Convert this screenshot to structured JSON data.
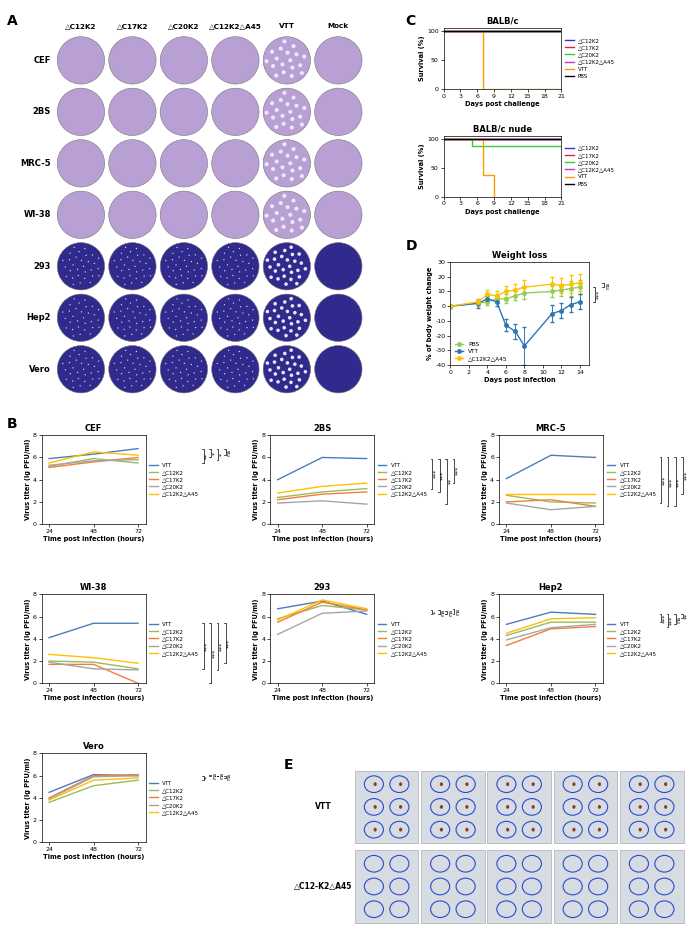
{
  "panel_labels": [
    "A",
    "B",
    "C",
    "D",
    "E"
  ],
  "plaque_assay": {
    "columns": [
      "△C12K2",
      "△C17K2",
      "△C20K2",
      "△C12K2△A45",
      "VTT",
      "Mock"
    ],
    "rows": [
      "CEF",
      "2BS",
      "MRC-5",
      "WI-38",
      "293",
      "Hep2",
      "Vero"
    ]
  },
  "chart_data": [
    {
      "type": "line",
      "title": "CEF",
      "xlabel": "Time post infection (hours)",
      "ylabel": "Virus titer (lg PFU/ml)",
      "x": [
        24,
        48,
        72
      ],
      "xlim": [
        20,
        76
      ],
      "xticks": [
        24,
        48,
        72
      ],
      "ylim": [
        0,
        8
      ],
      "yticks": [
        0,
        2,
        4,
        6,
        8
      ],
      "legend": "right",
      "series": [
        {
          "name": "VTT",
          "color": "#4a7ebb",
          "values": [
            5.9,
            6.3,
            6.8
          ]
        },
        {
          "name": "△C12K2",
          "color": "#9bbb59",
          "values": [
            5.2,
            5.9,
            5.5
          ]
        },
        {
          "name": "△C17K2",
          "color": "#f07f3c",
          "values": [
            5.1,
            5.6,
            6.0
          ]
        },
        {
          "name": "△C20K2",
          "color": "#a5a5a5",
          "values": [
            5.3,
            5.7,
            5.8
          ]
        },
        {
          "name": "△C12K2△A45",
          "color": "#ffc000",
          "values": [
            5.5,
            6.5,
            6.2
          ]
        }
      ],
      "comparisons": [
        {
          "series": "VTT",
          "versus": "△C12K2",
          "label": "**"
        },
        {
          "series": "VTT",
          "versus": "△C17K2",
          "label": "*"
        },
        {
          "series": "VTT",
          "versus": "△C20K2",
          "label": "*"
        },
        {
          "series": "VTT",
          "versus": "△C12K2△A45",
          "label": "ns"
        }
      ]
    },
    {
      "type": "line",
      "title": "2BS",
      "xlabel": "Time post infection (hours)",
      "ylabel": "Virus titer (lg PFU/ml)",
      "x": [
        24,
        48,
        72
      ],
      "xlim": [
        20,
        76
      ],
      "xticks": [
        24,
        48,
        72
      ],
      "ylim": [
        0,
        8
      ],
      "yticks": [
        0,
        2,
        4,
        6,
        8
      ],
      "legend": "right",
      "series": [
        {
          "name": "VTT",
          "color": "#4a7ebb",
          "values": [
            4.0,
            6.0,
            5.9
          ]
        },
        {
          "name": "△C12K2",
          "color": "#9bbb59",
          "values": [
            2.4,
            2.9,
            3.2
          ]
        },
        {
          "name": "△C17K2",
          "color": "#f07f3c",
          "values": [
            2.2,
            2.7,
            2.9
          ]
        },
        {
          "name": "△C20K2",
          "color": "#a5a5a5",
          "values": [
            1.9,
            2.1,
            1.8
          ]
        },
        {
          "name": "△C12K2△A45",
          "color": "#ffc000",
          "values": [
            2.8,
            3.4,
            3.7
          ]
        }
      ],
      "comparisons": [
        {
          "series": "VTT",
          "versus": "△C12K2",
          "label": "***"
        },
        {
          "series": "VTT",
          "versus": "△C17K2",
          "label": "***"
        },
        {
          "series": "VTT",
          "versus": "△C20K2",
          "label": "**"
        },
        {
          "series": "VTT",
          "versus": "△C12K2△A45",
          "label": "***"
        }
      ]
    },
    {
      "type": "line",
      "title": "MRC-5",
      "xlabel": "Time post infection (hours)",
      "ylabel": "Virus titer (lg PFU/ml)",
      "x": [
        24,
        48,
        72
      ],
      "xlim": [
        20,
        76
      ],
      "xticks": [
        24,
        48,
        72
      ],
      "ylim": [
        0,
        8
      ],
      "yticks": [
        0,
        2,
        4,
        6,
        8
      ],
      "legend": "right",
      "series": [
        {
          "name": "VTT",
          "color": "#4a7ebb",
          "values": [
            4.1,
            6.2,
            6.0
          ]
        },
        {
          "name": "△C12K2",
          "color": "#9bbb59",
          "values": [
            2.6,
            2.0,
            1.9
          ]
        },
        {
          "name": "△C17K2",
          "color": "#f07f3c",
          "values": [
            2.0,
            2.2,
            1.6
          ]
        },
        {
          "name": "△C20K2",
          "color": "#a5a5a5",
          "values": [
            1.9,
            1.3,
            1.6
          ]
        },
        {
          "name": "△C12K2△A45",
          "color": "#ffc000",
          "values": [
            2.7,
            2.7,
            2.7
          ]
        }
      ],
      "comparisons": [
        {
          "series": "VTT",
          "versus": "△C12K2",
          "label": "***"
        },
        {
          "series": "VTT",
          "versus": "△C17K2",
          "label": "***"
        },
        {
          "series": "VTT",
          "versus": "△C20K2",
          "label": "***"
        },
        {
          "series": "VTT",
          "versus": "△C12K2△A45",
          "label": "***"
        }
      ]
    },
    {
      "type": "line",
      "title": "WI-38",
      "xlabel": "Time post infection (hours)",
      "ylabel": "Virus titer (lg PFU/ml)",
      "x": [
        24,
        48,
        72
      ],
      "xlim": [
        20,
        76
      ],
      "xticks": [
        24,
        48,
        72
      ],
      "ylim": [
        0,
        8
      ],
      "yticks": [
        0,
        2,
        4,
        6,
        8
      ],
      "legend": "right",
      "series": [
        {
          "name": "VTT",
          "color": "#4a7ebb",
          "values": [
            4.1,
            5.4,
            5.4
          ]
        },
        {
          "name": "△C12K2",
          "color": "#9bbb59",
          "values": [
            2.0,
            1.9,
            1.3
          ]
        },
        {
          "name": "△C17K2",
          "color": "#f07f3c",
          "values": [
            1.7,
            1.7,
            0
          ]
        },
        {
          "name": "△C20K2",
          "color": "#a5a5a5",
          "values": [
            1.9,
            1.3,
            1.2
          ]
        },
        {
          "name": "△C12K2△A45",
          "color": "#ffc000",
          "values": [
            2.6,
            2.3,
            1.8
          ]
        }
      ],
      "comparisons": [
        {
          "series": "VTT",
          "versus": "△C12K2",
          "label": "***"
        },
        {
          "series": "VTT",
          "versus": "△C17K2",
          "label": "***"
        },
        {
          "series": "VTT",
          "versus": "△C20K2",
          "label": "***"
        },
        {
          "series": "VTT",
          "versus": "△C12K2△A45",
          "label": "***"
        }
      ]
    },
    {
      "type": "line",
      "title": "293",
      "xlabel": "Time post infection (hours)",
      "ylabel": "Virus titer (lg PFU/ml)",
      "x": [
        24,
        48,
        72
      ],
      "xlim": [
        20,
        76
      ],
      "xticks": [
        24,
        48,
        72
      ],
      "ylim": [
        0,
        8
      ],
      "yticks": [
        0,
        2,
        4,
        6,
        8
      ],
      "legend": "right",
      "series": [
        {
          "name": "VTT",
          "color": "#4a7ebb",
          "values": [
            6.7,
            7.4,
            6.2
          ]
        },
        {
          "name": "△C12K2",
          "color": "#9bbb59",
          "values": [
            5.8,
            7.0,
            6.6
          ]
        },
        {
          "name": "△C17K2",
          "color": "#f07f3c",
          "values": [
            5.5,
            7.3,
            6.6
          ]
        },
        {
          "name": "△C20K2",
          "color": "#a5a5a5",
          "values": [
            4.4,
            6.3,
            6.5
          ]
        },
        {
          "name": "△C12K2△A45",
          "color": "#ffc000",
          "values": [
            5.7,
            7.5,
            6.7
          ]
        }
      ],
      "comparisons": [
        {
          "series": "VTT",
          "versus": "△C12K2",
          "label": "*"
        },
        {
          "series": "VTT",
          "versus": "△C17K2",
          "label": "ns"
        },
        {
          "series": "VTT",
          "versus": "△C20K2",
          "label": "ns"
        },
        {
          "series": "VTT",
          "versus": "△C12K2△A45",
          "label": "ns"
        }
      ]
    },
    {
      "type": "line",
      "title": "Hep2",
      "xlabel": "Time post infection (hours)",
      "ylabel": "Virus titer (lg PFU/ml)",
      "x": [
        24,
        48,
        72
      ],
      "xlim": [
        20,
        76
      ],
      "xticks": [
        24,
        48,
        72
      ],
      "ylim": [
        0,
        8
      ],
      "yticks": [
        0,
        2,
        4,
        6,
        8
      ],
      "legend": "right",
      "series": [
        {
          "name": "VTT",
          "color": "#4a7ebb",
          "values": [
            5.3,
            6.4,
            6.2
          ]
        },
        {
          "name": "△C12K2",
          "color": "#9bbb59",
          "values": [
            4.3,
            5.5,
            5.5
          ]
        },
        {
          "name": "△C17K2",
          "color": "#f07f3c",
          "values": [
            3.4,
            4.9,
            5.1
          ]
        },
        {
          "name": "△C20K2",
          "color": "#a5a5a5",
          "values": [
            3.9,
            5.0,
            5.3
          ]
        },
        {
          "name": "△C12K2△A45",
          "color": "#ffc000",
          "values": [
            4.5,
            5.8,
            5.9
          ]
        }
      ],
      "comparisons": [
        {
          "series": "VTT",
          "versus": "△C12K2",
          "label": "***"
        },
        {
          "series": "VTT",
          "versus": "△C17K2",
          "label": "***"
        },
        {
          "series": "VTT",
          "versus": "△C20K2",
          "label": "ns"
        },
        {
          "series": "VTT",
          "versus": "△C12K2△A45",
          "label": "**"
        }
      ]
    },
    {
      "type": "line",
      "title": "Vero",
      "xlabel": "Time post infection (hours)",
      "ylabel": "Virus titer (lg PFU/ml)",
      "x": [
        24,
        48,
        72
      ],
      "xlim": [
        20,
        76
      ],
      "xticks": [
        24,
        48,
        72
      ],
      "ylim": [
        0,
        8
      ],
      "yticks": [
        0,
        2,
        4,
        6,
        8
      ],
      "legend": "right",
      "series": [
        {
          "name": "VTT",
          "color": "#4a7ebb",
          "values": [
            4.5,
            6.1,
            6.0
          ]
        },
        {
          "name": "△C12K2",
          "color": "#9bbb59",
          "values": [
            3.6,
            5.1,
            5.6
          ]
        },
        {
          "name": "△C17K2",
          "color": "#f07f3c",
          "values": [
            4.0,
            6.0,
            6.1
          ]
        },
        {
          "name": "△C20K2",
          "color": "#a5a5a5",
          "values": [
            3.9,
            5.9,
            6.0
          ]
        },
        {
          "name": "△C12K2△A45",
          "color": "#ffc000",
          "values": [
            3.8,
            5.6,
            5.8
          ]
        }
      ],
      "comparisons": [
        {
          "series": "VTT",
          "versus": "△C12K2",
          "label": "*"
        },
        {
          "series": "VTT",
          "versus": "△C17K2",
          "label": "ns"
        },
        {
          "series": "VTT",
          "versus": "△C20K2",
          "label": "ns"
        },
        {
          "series": "VTT",
          "versus": "△C12K2△A45",
          "label": "ns"
        }
      ]
    },
    {
      "type": "line",
      "title": "BALB/c",
      "xlabel": "Days post challenge",
      "ylabel": "Survival (%)",
      "xlim": [
        0,
        21
      ],
      "xticks": [
        0,
        3,
        6,
        9,
        12,
        15,
        18,
        21
      ],
      "ylim": [
        0,
        105
      ],
      "yticks": [
        0,
        50,
        100
      ],
      "legend": "right",
      "series": [
        {
          "name": "△C12K2",
          "color": "#3333cc",
          "line_style": "steps",
          "x": [
            0,
            21
          ],
          "values": [
            100,
            100
          ]
        },
        {
          "name": "△C17K2",
          "color": "#e0204a",
          "line_style": "steps",
          "x": [
            0,
            21
          ],
          "values": [
            100,
            100
          ]
        },
        {
          "name": "△C20K2",
          "color": "#33cc33",
          "line_style": "steps",
          "x": [
            0,
            21
          ],
          "values": [
            100,
            100
          ]
        },
        {
          "name": "△C12K2△A45",
          "color": "#cc33cc",
          "line_style": "steps",
          "x": [
            0,
            21
          ],
          "values": [
            100,
            100
          ]
        },
        {
          "name": "VTT",
          "color": "#ff9900",
          "line_style": "steps",
          "x": [
            0,
            7,
            21
          ],
          "values": [
            100,
            0,
            0
          ]
        },
        {
          "name": "PBS",
          "color": "#000000",
          "line_style": "steps",
          "x": [
            0,
            21
          ],
          "values": [
            100,
            100
          ]
        }
      ]
    },
    {
      "type": "line",
      "title": "BALB/c nude",
      "xlabel": "Days post challenge",
      "ylabel": "Survival (%)",
      "xlim": [
        0,
        21
      ],
      "xticks": [
        0,
        3,
        6,
        9,
        12,
        15,
        18,
        21
      ],
      "ylim": [
        0,
        105
      ],
      "yticks": [
        0,
        50,
        100
      ],
      "legend": "right",
      "series": [
        {
          "name": "△C12K2",
          "color": "#3333cc",
          "line_style": "steps",
          "x": [
            0,
            21
          ],
          "values": [
            100,
            100
          ]
        },
        {
          "name": "△C17K2",
          "color": "#e0204a",
          "line_style": "steps",
          "x": [
            0,
            21
          ],
          "values": [
            100,
            100
          ]
        },
        {
          "name": "△C20K2",
          "color": "#33cc33",
          "line_style": "steps",
          "x": [
            0,
            5,
            21
          ],
          "values": [
            100,
            87.5,
            87.5
          ]
        },
        {
          "name": "△C12K2△A45",
          "color": "#cc33cc",
          "line_style": "steps",
          "x": [
            0,
            21
          ],
          "values": [
            100,
            100
          ]
        },
        {
          "name": "VTT",
          "color": "#ff9900",
          "line_style": "steps",
          "x": [
            0,
            7,
            9
          ],
          "values": [
            100,
            37.5,
            0
          ]
        },
        {
          "name": "PBS",
          "color": "#000000",
          "line_style": "steps",
          "x": [
            0,
            21
          ],
          "values": [
            100,
            100
          ]
        }
      ]
    },
    {
      "type": "line",
      "title": "Weight loss",
      "xlabel": "Days post infection",
      "ylabel": "% of body weight change",
      "x": [
        0,
        3,
        4,
        5,
        6,
        7,
        8,
        11,
        12,
        13,
        14
      ],
      "xlim": [
        0,
        15
      ],
      "xticks": [
        0,
        2,
        4,
        6,
        8,
        10,
        12,
        14
      ],
      "ylim": [
        -40,
        30
      ],
      "yticks": [
        -40,
        -30,
        -20,
        -10,
        0,
        10,
        20,
        30
      ],
      "legend": "lower left",
      "series": [
        {
          "name": "PBS",
          "color": "#92d050",
          "marker": "o",
          "values": [
            0,
            2,
            3,
            5,
            5,
            7,
            9,
            10,
            11,
            12,
            13
          ],
          "errors": [
            1,
            2,
            2,
            3,
            3,
            3,
            4,
            4,
            4,
            5,
            5
          ]
        },
        {
          "name": "VTT",
          "color": "#2e75b6",
          "marker": "o",
          "values": [
            0,
            2,
            5,
            3,
            -13,
            -17,
            -27,
            -5,
            -3,
            1,
            3
          ],
          "errors": [
            1,
            3,
            2,
            3,
            4,
            5,
            13,
            6,
            5,
            5,
            5
          ]
        },
        {
          "name": "△C12K2△A45",
          "color": "#ffc000",
          "marker": "o",
          "values": [
            0,
            3,
            8,
            7,
            10,
            11,
            13,
            15,
            14,
            15,
            16
          ],
          "errors": [
            1,
            2,
            3,
            3,
            4,
            4,
            5,
            5,
            5,
            6,
            6
          ]
        }
      ],
      "comparisons": [
        {
          "series": "PBS",
          "versus": "VTT",
          "label": "***"
        },
        {
          "series": "PBS",
          "versus": "△C12K2△A45",
          "label": "ns"
        }
      ]
    }
  ],
  "skin_photos": {
    "rows": [
      "VTT",
      "△C12-K2△A45"
    ]
  }
}
